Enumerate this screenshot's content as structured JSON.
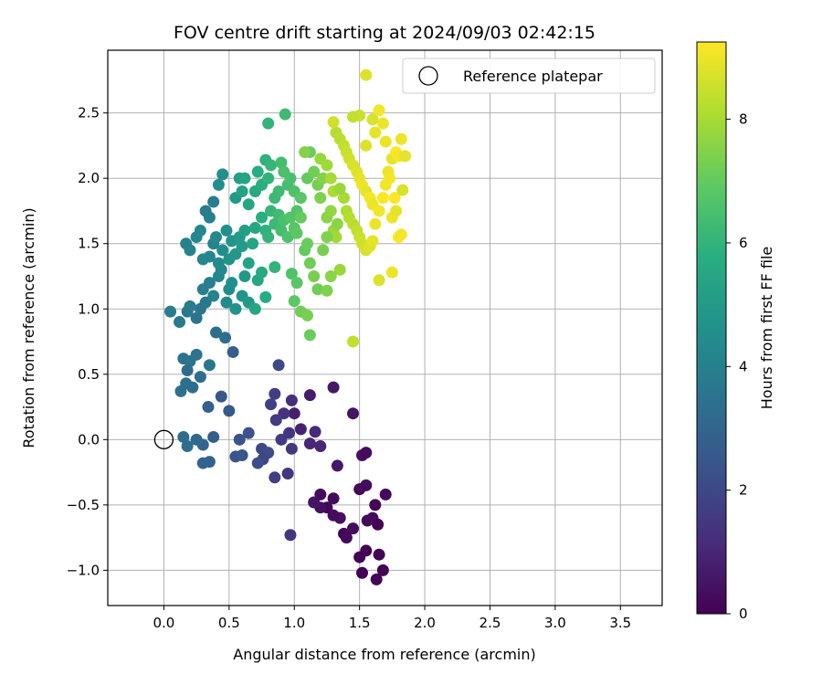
{
  "chart_data": {
    "type": "scatter",
    "title": "FOV centre drift starting at 2024/09/03 02:42:15",
    "xlabel": "Angular distance from reference (arcmin)",
    "ylabel": "Rotation from reference (arcmin)",
    "colorbar_label": "Hours from first FF file",
    "xlim": [
      -0.43,
      3.82
    ],
    "ylim": [
      -1.27,
      2.98
    ],
    "x_ticks": [
      "0.0",
      "0.5",
      "1.0",
      "1.5",
      "2.0",
      "2.5",
      "3.0",
      "3.5"
    ],
    "y_ticks": [
      "−1.0",
      "−0.5",
      "0.0",
      "0.5",
      "1.0",
      "1.5",
      "2.0",
      "2.5"
    ],
    "colorbar_range": [
      0,
      9.25
    ],
    "colorbar_ticks": [
      "0",
      "2",
      "4",
      "6",
      "8"
    ],
    "colormap": "viridis",
    "grid": true,
    "legend_position": "top-right",
    "legend": [
      {
        "label": "Reference platepar",
        "marker": "open-circle",
        "x": 0.0,
        "y": 0.0
      }
    ],
    "points": [
      [
        1.25,
        -0.52,
        0.1
      ],
      [
        1.3,
        -0.45,
        0.2
      ],
      [
        1.38,
        -0.72,
        0.1
      ],
      [
        1.45,
        -0.68,
        0.3
      ],
      [
        1.5,
        -0.9,
        0.1
      ],
      [
        1.52,
        -1.02,
        0.0
      ],
      [
        1.55,
        -0.85,
        0.1
      ],
      [
        1.6,
        -0.6,
        0.2
      ],
      [
        1.62,
        -0.5,
        0.1
      ],
      [
        1.64,
        -0.65,
        0.0
      ],
      [
        1.65,
        -0.88,
        0.1
      ],
      [
        1.68,
        -1.0,
        0.0
      ],
      [
        1.63,
        -1.07,
        0.1
      ],
      [
        1.7,
        -0.42,
        0.2
      ],
      [
        1.55,
        -0.35,
        0.3
      ],
      [
        1.5,
        -0.38,
        0.2
      ],
      [
        1.52,
        -0.12,
        0.4
      ],
      [
        1.55,
        -0.1,
        0.3
      ],
      [
        1.35,
        -0.6,
        0.4
      ],
      [
        1.3,
        -0.58,
        0.3
      ],
      [
        1.2,
        -0.52,
        0.4
      ],
      [
        1.15,
        -0.48,
        0.5
      ],
      [
        1.3,
        0.4,
        0.6
      ],
      [
        1.45,
        0.2,
        0.5
      ],
      [
        1.33,
        -0.2,
        0.6
      ],
      [
        1.12,
        0.34,
        0.7
      ],
      [
        1.0,
        0.2,
        0.8
      ],
      [
        1.05,
        0.08,
        0.9
      ],
      [
        1.12,
        -0.03,
        1.0
      ],
      [
        1.16,
        0.06,
        1.1
      ],
      [
        1.2,
        -0.05,
        1.0
      ],
      [
        0.98,
        0.3,
        1.2
      ],
      [
        0.92,
        0.2,
        1.3
      ],
      [
        0.96,
        0.05,
        1.4
      ],
      [
        0.98,
        -0.07,
        1.5
      ],
      [
        0.9,
        0.0,
        1.6
      ],
      [
        0.85,
        0.35,
        1.7
      ],
      [
        0.82,
        0.27,
        1.8
      ],
      [
        0.86,
        0.15,
        1.6
      ],
      [
        0.88,
        0.57,
        2.0
      ],
      [
        0.75,
        -0.07,
        2.0
      ],
      [
        0.8,
        -0.1,
        2.1
      ],
      [
        0.76,
        -0.15,
        1.9
      ],
      [
        0.72,
        -0.18,
        2.2
      ],
      [
        0.65,
        0.05,
        2.3
      ],
      [
        0.58,
        0.0,
        2.4
      ],
      [
        0.55,
        -0.13,
        2.3
      ],
      [
        0.6,
        -0.12,
        2.5
      ],
      [
        0.44,
        0.33,
        2.5
      ],
      [
        0.5,
        0.22,
        2.6
      ],
      [
        0.53,
        0.67,
        2.7
      ],
      [
        0.38,
        0.02,
        2.7
      ],
      [
        0.34,
        0.25,
        2.8
      ],
      [
        0.35,
        -0.17,
        2.9
      ],
      [
        0.3,
        -0.18,
        3.0
      ],
      [
        0.3,
        -0.04,
        3.0
      ],
      [
        0.25,
        0.0,
        3.1
      ],
      [
        0.15,
        0.02,
        3.2
      ],
      [
        0.18,
        -0.05,
        3.3
      ],
      [
        0.97,
        -0.73,
        1.4
      ],
      [
        0.85,
        -0.29,
        1.7
      ],
      [
        0.95,
        -0.26,
        1.4
      ],
      [
        1.2,
        -0.42,
        0.3
      ],
      [
        1.56,
        -0.62,
        0.2
      ],
      [
        1.4,
        -0.75,
        0.2
      ],
      [
        0.13,
        0.37,
        3.4
      ],
      [
        0.17,
        0.43,
        3.4
      ],
      [
        0.2,
        0.6,
        3.5
      ],
      [
        0.25,
        0.65,
        3.5
      ],
      [
        0.28,
        0.48,
        3.3
      ],
      [
        0.18,
        0.53,
        3.2
      ],
      [
        0.22,
        0.4,
        3.3
      ],
      [
        0.35,
        0.57,
        3.6
      ],
      [
        0.4,
        0.82,
        3.4
      ],
      [
        0.47,
        0.78,
        3.3
      ],
      [
        0.15,
        0.62,
        3.5
      ],
      [
        0.12,
        0.9,
        3.8
      ],
      [
        0.18,
        0.98,
        3.7
      ],
      [
        0.05,
        0.98,
        3.9
      ],
      [
        0.2,
        1.02,
        3.8
      ],
      [
        0.25,
        0.93,
        3.5
      ],
      [
        0.28,
        1.0,
        3.6
      ],
      [
        0.32,
        1.05,
        3.7
      ],
      [
        0.3,
        1.15,
        3.9
      ],
      [
        0.35,
        1.2,
        4.0
      ],
      [
        0.38,
        1.1,
        4.1
      ],
      [
        0.42,
        1.25,
        4.2
      ],
      [
        0.44,
        1.3,
        4.3
      ],
      [
        0.48,
        1.05,
        4.4
      ],
      [
        0.5,
        1.15,
        4.5
      ],
      [
        0.52,
        1.2,
        4.6
      ],
      [
        0.55,
        1.0,
        4.7
      ],
      [
        0.6,
        1.1,
        4.8
      ],
      [
        0.62,
        1.25,
        4.9
      ],
      [
        0.65,
        1.05,
        5.0
      ],
      [
        0.35,
        1.4,
        4.2
      ],
      [
        0.38,
        1.5,
        4.1
      ],
      [
        0.4,
        1.55,
        4.3
      ],
      [
        0.42,
        1.35,
        4.4
      ],
      [
        0.45,
        1.45,
        4.5
      ],
      [
        0.48,
        1.6,
        4.6
      ],
      [
        0.5,
        1.38,
        4.7
      ],
      [
        0.52,
        1.52,
        4.8
      ],
      [
        0.55,
        1.42,
        4.9
      ],
      [
        0.58,
        1.55,
        5.0
      ],
      [
        0.6,
        1.48,
        5.1
      ],
      [
        0.62,
        1.6,
        5.2
      ],
      [
        0.65,
        1.35,
        5.3
      ],
      [
        0.68,
        1.5,
        5.4
      ],
      [
        0.7,
        1.62,
        5.5
      ],
      [
        0.17,
        1.5,
        4.0
      ],
      [
        0.2,
        1.45,
        4.1
      ],
      [
        0.25,
        1.55,
        4.2
      ],
      [
        0.28,
        1.6,
        4.3
      ],
      [
        0.3,
        1.38,
        4.2
      ],
      [
        0.35,
        1.7,
        4.0
      ],
      [
        0.32,
        1.75,
        3.8
      ],
      [
        0.38,
        1.82,
        3.9
      ],
      [
        0.42,
        1.95,
        4.5
      ],
      [
        0.45,
        2.03,
        4.6
      ],
      [
        0.55,
        1.85,
        5.0
      ],
      [
        0.58,
        2.0,
        5.2
      ],
      [
        0.6,
        1.9,
        5.3
      ],
      [
        0.62,
        2.0,
        5.4
      ],
      [
        0.65,
        1.8,
        5.5
      ],
      [
        0.7,
        1.9,
        5.6
      ],
      [
        0.72,
        2.05,
        5.7
      ],
      [
        0.75,
        1.95,
        5.8
      ],
      [
        0.78,
        2.14,
        5.9
      ],
      [
        0.8,
        2.0,
        6.0
      ],
      [
        0.82,
        2.1,
        6.1
      ],
      [
        0.85,
        1.85,
        6.2
      ],
      [
        0.88,
        1.9,
        6.3
      ],
      [
        0.9,
        2.12,
        6.4
      ],
      [
        0.92,
        2.05,
        6.5
      ],
      [
        0.95,
        1.95,
        6.4
      ],
      [
        0.97,
        2.0,
        6.5
      ],
      [
        1.0,
        1.9,
        6.6
      ],
      [
        1.02,
        1.75,
        6.7
      ],
      [
        1.05,
        1.85,
        6.8
      ],
      [
        0.8,
        2.42,
        6.0
      ],
      [
        0.93,
        2.49,
        6.3
      ],
      [
        0.75,
        1.7,
        5.8
      ],
      [
        0.78,
        1.6,
        5.9
      ],
      [
        0.8,
        1.55,
        6.0
      ],
      [
        0.82,
        1.75,
        6.1
      ],
      [
        0.85,
        1.65,
        6.2
      ],
      [
        0.88,
        1.72,
        6.3
      ],
      [
        0.9,
        1.6,
        6.4
      ],
      [
        0.92,
        1.68,
        6.5
      ],
      [
        0.95,
        1.55,
        6.6
      ],
      [
        0.97,
        1.7,
        6.7
      ],
      [
        1.0,
        1.62,
        6.8
      ],
      [
        1.02,
        1.58,
        6.9
      ],
      [
        1.05,
        1.7,
        7.0
      ],
      [
        0.72,
        1.22,
        5.5
      ],
      [
        0.75,
        1.28,
        5.6
      ],
      [
        0.78,
        1.09,
        5.7
      ],
      [
        0.7,
        1.0,
        5.5
      ],
      [
        0.85,
        1.32,
        6.0
      ],
      [
        0.98,
        1.27,
        6.6
      ],
      [
        1.02,
        1.2,
        6.8
      ],
      [
        1.08,
        1.45,
        7.0
      ],
      [
        1.1,
        1.5,
        7.1
      ],
      [
        1.12,
        1.35,
        7.2
      ],
      [
        1.15,
        1.25,
        7.3
      ],
      [
        1.18,
        1.15,
        7.2
      ],
      [
        1.25,
        1.14,
        7.4
      ],
      [
        1.0,
        1.06,
        6.9
      ],
      [
        1.05,
        0.98,
        7.2
      ],
      [
        1.1,
        0.95,
        7.3
      ],
      [
        1.12,
        0.8,
        7.1
      ],
      [
        1.1,
        2.0,
        7.0
      ],
      [
        1.12,
        2.2,
        7.1
      ],
      [
        1.15,
        2.05,
        7.2
      ],
      [
        1.18,
        1.95,
        7.3
      ],
      [
        1.2,
        1.85,
        7.4
      ],
      [
        1.22,
        2.0,
        7.5
      ],
      [
        1.25,
        1.7,
        7.6
      ],
      [
        1.28,
        1.75,
        7.7
      ],
      [
        1.3,
        1.6,
        7.8
      ],
      [
        1.32,
        1.55,
        7.9
      ],
      [
        1.35,
        1.3,
        7.8
      ],
      [
        1.08,
        2.2,
        7.5
      ],
      [
        1.2,
        2.15,
        7.8
      ],
      [
        1.25,
        2.1,
        7.9
      ],
      [
        1.28,
        2.0,
        8.0
      ],
      [
        1.3,
        1.9,
        8.1
      ],
      [
        1.32,
        2.35,
        8.2
      ],
      [
        1.35,
        2.3,
        8.3
      ],
      [
        1.38,
        2.25,
        8.4
      ],
      [
        1.4,
        2.2,
        8.5
      ],
      [
        1.42,
        2.15,
        8.6
      ],
      [
        1.45,
        2.1,
        8.7
      ],
      [
        1.48,
        2.05,
        8.8
      ],
      [
        1.5,
        2.0,
        8.9
      ],
      [
        1.52,
        1.95,
        9.0
      ],
      [
        1.55,
        1.9,
        8.9
      ],
      [
        1.58,
        1.85,
        9.1
      ],
      [
        1.6,
        1.8,
        9.0
      ],
      [
        1.38,
        1.85,
        8.0
      ],
      [
        1.4,
        1.75,
        8.1
      ],
      [
        1.42,
        1.7,
        8.2
      ],
      [
        1.45,
        1.65,
        8.3
      ],
      [
        1.48,
        1.6,
        8.4
      ],
      [
        1.5,
        1.55,
        8.5
      ],
      [
        1.52,
        1.5,
        8.6
      ],
      [
        1.55,
        1.45,
        8.7
      ],
      [
        1.58,
        1.48,
        8.8
      ],
      [
        1.6,
        1.52,
        8.9
      ],
      [
        1.62,
        1.65,
        9.0
      ],
      [
        1.65,
        1.75,
        9.1
      ],
      [
        1.68,
        1.85,
        9.2
      ],
      [
        1.7,
        1.95,
        9.1
      ],
      [
        1.72,
        2.05,
        9.0
      ],
      [
        1.75,
        2.15,
        8.9
      ],
      [
        1.78,
        2.2,
        9.2
      ],
      [
        1.8,
        2.17,
        9.1
      ],
      [
        1.82,
        2.3,
        9.0
      ],
      [
        1.85,
        2.17,
        8.9
      ],
      [
        1.3,
        2.43,
        8.6
      ],
      [
        1.55,
        2.79,
        8.8
      ],
      [
        1.65,
        2.52,
        9.1
      ],
      [
        1.68,
        2.42,
        9.0
      ],
      [
        1.5,
        2.48,
        8.5
      ],
      [
        1.45,
        2.47,
        8.4
      ],
      [
        1.6,
        2.45,
        8.7
      ],
      [
        1.55,
        2.25,
        8.8
      ],
      [
        1.62,
        2.35,
        8.9
      ],
      [
        1.7,
        2.28,
        9.0
      ],
      [
        1.73,
        2.0,
        9.1
      ],
      [
        1.75,
        1.7,
        9.0
      ],
      [
        1.77,
        1.85,
        9.2
      ],
      [
        1.78,
        1.75,
        8.9
      ],
      [
        1.8,
        1.55,
        9.2
      ],
      [
        1.82,
        1.57,
        9.1
      ],
      [
        1.75,
        1.28,
        9.0
      ],
      [
        1.65,
        1.22,
        8.8
      ],
      [
        1.83,
        1.91,
        8.7
      ],
      [
        1.45,
        0.75,
        8.4
      ],
      [
        1.35,
        1.92,
        7.8
      ],
      [
        1.33,
        1.65,
        7.6
      ],
      [
        1.25,
        1.55,
        7.4
      ],
      [
        1.22,
        1.45,
        7.3
      ],
      [
        1.28,
        1.25,
        7.6
      ]
    ]
  }
}
